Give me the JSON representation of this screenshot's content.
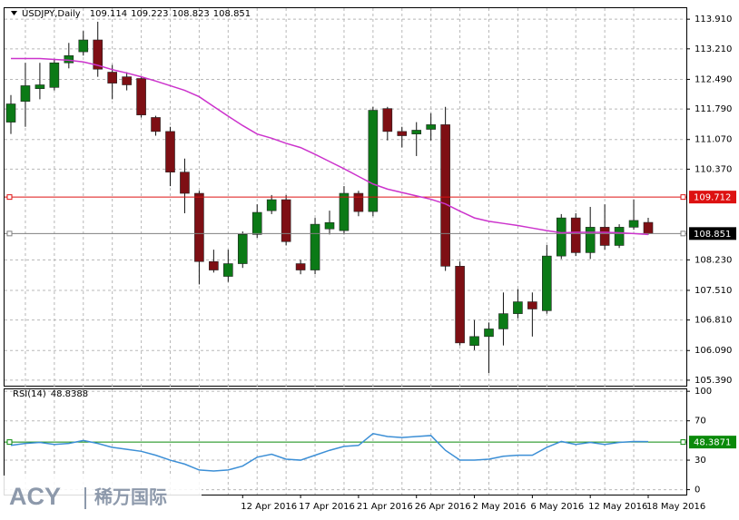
{
  "chart_data": [
    {
      "type": "candlestick",
      "title": "USDJPY,Daily",
      "header_values": [
        109.114,
        109.223,
        108.823,
        108.851
      ],
      "categories": [
        null,
        null,
        null,
        null,
        null,
        null,
        null,
        null,
        null,
        null,
        null,
        null,
        null,
        null,
        null,
        null,
        "12 Apr 2016",
        null,
        null,
        null,
        "17 Apr 2016",
        null,
        null,
        null,
        "21 Apr 2016",
        null,
        null,
        null,
        "26 Apr 2016",
        null,
        null,
        null,
        "2 May 2016",
        null,
        null,
        null,
        "6 May 2016",
        null,
        null,
        null,
        "12 May 2016",
        null,
        null,
        null,
        "18 May 2016"
      ],
      "open": [
        111.48,
        111.97,
        112.27,
        112.3,
        112.88,
        113.14,
        113.42,
        112.66,
        112.55,
        112.51,
        111.59,
        111.26,
        110.3,
        109.8,
        108.19,
        107.84,
        108.14,
        108.83,
        109.39,
        109.65,
        108.14,
        107.99,
        108.96,
        108.92,
        109.8,
        109.37,
        111.8,
        111.26,
        111.2,
        111.31,
        111.42,
        108.08,
        106.21,
        106.42,
        106.6,
        106.96,
        107.24,
        107.03,
        108.32,
        109.22,
        108.4,
        109.0,
        108.57,
        109.0,
        109.114
      ],
      "high": [
        112.12,
        112.88,
        112.88,
        112.98,
        113.35,
        113.63,
        113.85,
        112.83,
        112.66,
        112.55,
        111.63,
        111.37,
        110.62,
        109.86,
        108.47,
        108.47,
        108.9,
        109.54,
        109.76,
        109.76,
        108.23,
        109.22,
        109.39,
        109.97,
        109.86,
        111.84,
        111.84,
        111.37,
        111.48,
        111.69,
        111.84,
        108.19,
        106.81,
        106.75,
        107.46,
        107.54,
        107.46,
        108.58,
        109.31,
        109.33,
        109.48,
        109.54,
        109.07,
        109.65,
        109.223
      ],
      "low": [
        111.2,
        111.37,
        112.02,
        112.23,
        112.75,
        113.05,
        112.55,
        112.02,
        112.23,
        111.59,
        111.16,
        109.97,
        109.33,
        107.65,
        107.93,
        107.71,
        108.04,
        108.75,
        109.31,
        108.57,
        107.89,
        107.89,
        108.83,
        108.83,
        109.26,
        109.26,
        111.05,
        110.88,
        110.68,
        111.05,
        107.97,
        106.21,
        106.1,
        105.56,
        106.21,
        106.85,
        106.42,
        106.96,
        108.25,
        108.32,
        108.25,
        108.47,
        108.51,
        108.94,
        108.823
      ],
      "close": [
        111.91,
        112.34,
        112.36,
        112.88,
        113.05,
        113.42,
        112.73,
        112.4,
        112.36,
        111.65,
        111.26,
        110.3,
        109.8,
        108.19,
        107.99,
        108.14,
        108.83,
        109.35,
        109.65,
        108.66,
        107.99,
        109.07,
        109.11,
        109.8,
        109.37,
        111.76,
        111.26,
        111.16,
        111.29,
        111.42,
        108.08,
        106.27,
        106.42,
        106.6,
        106.96,
        107.24,
        107.07,
        108.32,
        109.22,
        108.4,
        109.0,
        108.57,
        109.0,
        109.16,
        108.851
      ],
      "up_color": "#0b7a16",
      "down_color": "#7e0f14",
      "series": [
        {
          "color": "#cc33cc",
          "values": [
            112.98,
            112.98,
            112.98,
            112.96,
            112.94,
            112.9,
            112.82,
            112.72,
            112.64,
            112.55,
            112.45,
            112.34,
            112.23,
            112.08,
            111.85,
            111.62,
            111.4,
            111.2,
            111.1,
            110.98,
            110.88,
            110.72,
            110.55,
            110.38,
            110.2,
            110.02,
            109.9,
            109.82,
            109.74,
            109.66,
            109.55,
            109.38,
            109.22,
            109.14,
            109.09,
            109.04,
            108.98,
            108.92,
            108.87,
            108.88,
            108.88,
            108.88,
            108.87,
            108.85,
            108.83
          ]
        }
      ],
      "hlines": [
        {
          "value": 109.712,
          "color": "#dd1111"
        },
        {
          "value": 108.851,
          "color": "#808080"
        }
      ],
      "ylim": [
        105.26,
        114.17
      ],
      "yticks": [
        {
          "value": 113.91,
          "label": "113.910"
        },
        {
          "value": 113.21,
          "label": "113.210"
        },
        {
          "value": 112.49,
          "label": "112.490"
        },
        {
          "value": 111.79,
          "label": "111.790"
        },
        {
          "value": 111.07,
          "label": "111.070"
        },
        {
          "value": 110.37,
          "label": "110.370"
        },
        {
          "value": 108.23,
          "label": "108.230"
        },
        {
          "value": 107.51,
          "label": "107.510"
        },
        {
          "value": 106.81,
          "label": "106.810"
        },
        {
          "value": 106.09,
          "label": "106.090"
        },
        {
          "value": 105.39,
          "label": "105.390"
        }
      ],
      "grid": true
    },
    {
      "type": "line",
      "title": "RSI(14)",
      "current_value": 48.8388,
      "series": [
        {
          "color": "#3c8fd6",
          "values": [
            45,
            47,
            48,
            46,
            47,
            50,
            47,
            43,
            41,
            39,
            35,
            30,
            26,
            20,
            19,
            20,
            24,
            33,
            36,
            31,
            30,
            35,
            40,
            44,
            45,
            57,
            54,
            53,
            54,
            55,
            40,
            30,
            30,
            31,
            34,
            35,
            35,
            43,
            49,
            46,
            48,
            46,
            48,
            49,
            48.8
          ]
        }
      ],
      "hlines": [
        {
          "value": 48.3871,
          "color": "#0a8a0a"
        }
      ],
      "ylim": [
        -5,
        102
      ],
      "yticks": [
        100,
        70,
        30,
        0
      ],
      "grid": true
    }
  ],
  "watermark": {
    "brand": "ACY",
    "name": "稀万国际"
  }
}
